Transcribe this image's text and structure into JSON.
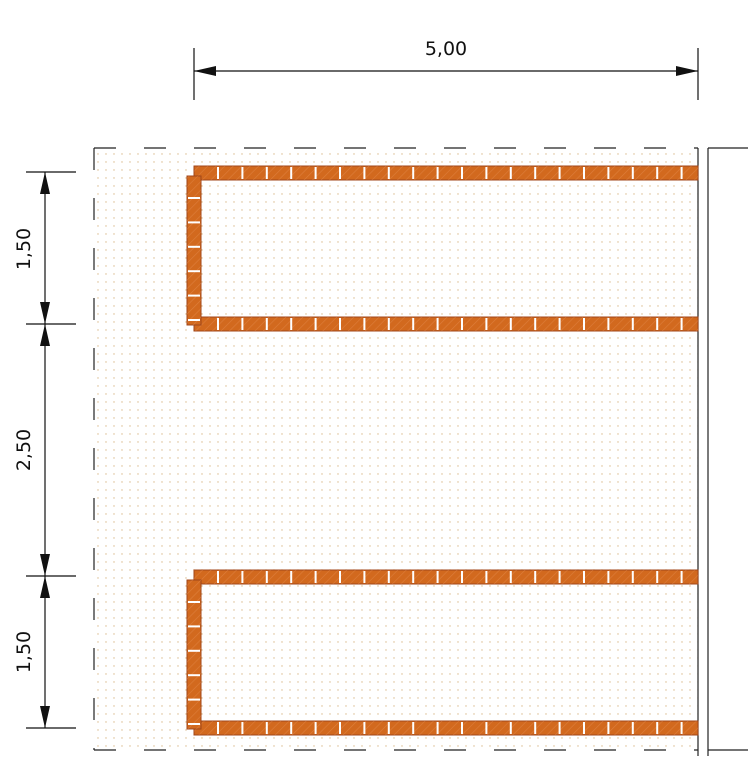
{
  "dimensions": {
    "width_label": "5,00",
    "bed1_label": "1,50",
    "gap_label": "2,50",
    "bed2_label": "1,50"
  },
  "colors": {
    "brick": "#D2691E",
    "brick_edge": "#A0461A",
    "brick_joint": "#ffffff",
    "soil_dots": "#D9B98A",
    "line": "#111111"
  },
  "icons": {
    "arrowhead": "filled-triangle-arrowhead"
  }
}
